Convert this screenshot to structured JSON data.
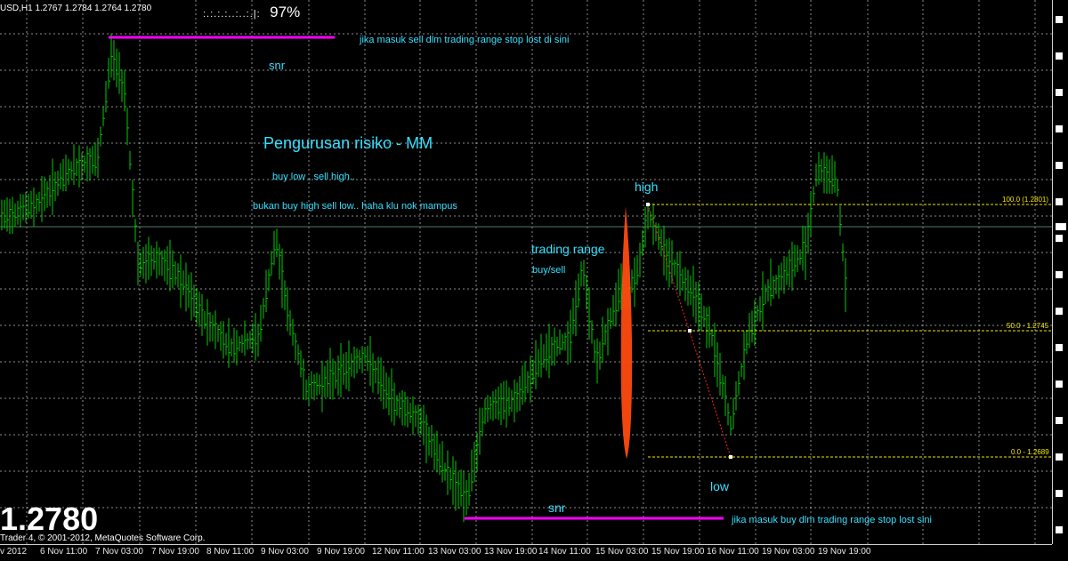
{
  "window": {
    "symbol_header": "USD,H1  1.2767 1.2784 1.2764 1.2780",
    "signal_meter": ":.:.:.:..:..:.|:",
    "signal_percent": "97%",
    "big_price": "1.2780",
    "copyright": "Trader 4, © 2001-2012, MetaQuotes Software Corp."
  },
  "annotations": {
    "snr_top": "snr",
    "snr_bottom": "snr",
    "note_top": "jika masuk sell dlm trading range stop lost di sini",
    "note_bottom": "jika masuk buy dlm trading range stop lost sini",
    "heading": "Pengurusan risiko - MM",
    "line1": "buy low , sell high..",
    "line2": "bukan buy high sell low.. haha klu nok mampus",
    "trading_range": "trading range",
    "buy_sell": "buy/sell",
    "high": "high",
    "low": "low"
  },
  "fibonacci": {
    "level_100": "100.0 (1.2801)",
    "level_50": "50.0 - 1.2745",
    "level_0": "0.0 - 1.2689"
  },
  "time_axis": {
    "labels": [
      "v 2012",
      "6 Nov 11:00",
      "7 Nov 03:00",
      "7 Nov 19:00",
      "8 Nov 11:00",
      "9 Nov 03:00",
      "9 Nov 19:00",
      "12 Nov 11:00",
      "13 Nov 03:00",
      "13 Nov 19:00",
      "14 Nov 11:00",
      "15 Nov 03:00",
      "15 Nov 19:00",
      "16 Nov 11:00",
      "19 Nov 03:00",
      "19 Nov 19:00"
    ]
  },
  "colors": {
    "background": "#000000",
    "candles": "#00cc00",
    "annotation_text": "#34e0ff",
    "snr_line": "#ff00ff",
    "fib_line": "#f5e600",
    "spike": "#ff4a10",
    "grid": "#ffffff"
  }
}
